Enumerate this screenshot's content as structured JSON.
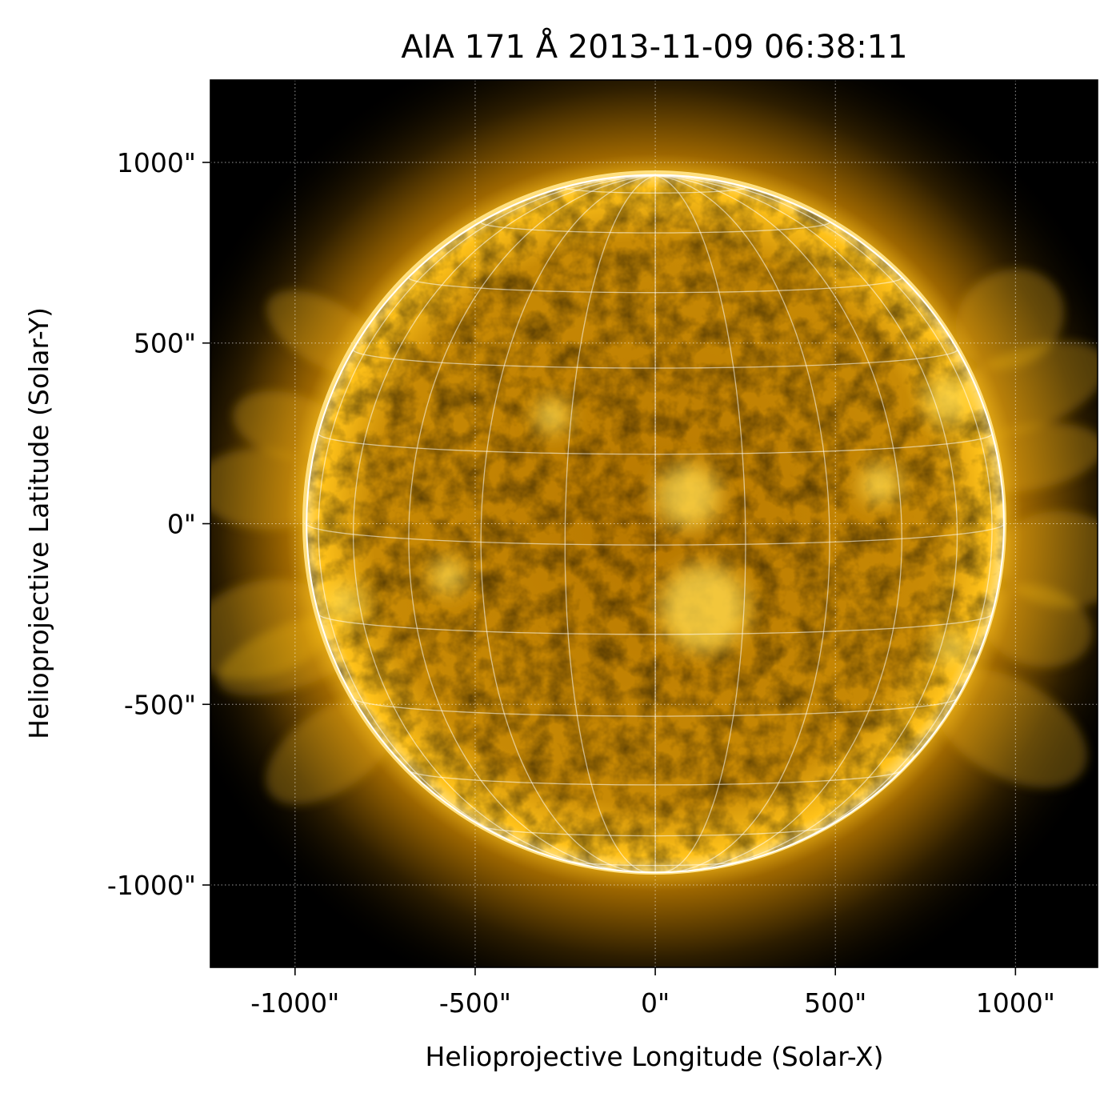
{
  "figure": {
    "title": "AIA 171 Å 2013-11-09 06:38:11",
    "xlabel": "Helioprojective Longitude (Solar-X)",
    "ylabel": "Helioprojective Latitude (Solar-Y)",
    "colormap": {
      "name": "sdoaia171",
      "dark": "#000000",
      "mid": "#b87800",
      "bright": "#ffc21a",
      "white": "#ffffff"
    },
    "axes": {
      "x_ticks": [
        {
          "value": -1000,
          "label": "-1000\""
        },
        {
          "value": -500,
          "label": "-500\""
        },
        {
          "value": 0,
          "label": "0\""
        },
        {
          "value": 500,
          "label": "500\""
        },
        {
          "value": 1000,
          "label": "1000\""
        }
      ],
      "y_ticks": [
        {
          "value": 1000,
          "label": "1000\""
        },
        {
          "value": 500,
          "label": "500\""
        },
        {
          "value": 0,
          "label": "0\""
        },
        {
          "value": -500,
          "label": "-500\""
        },
        {
          "value": -1000,
          "label": "-1000\""
        }
      ],
      "x_range": [
        -1235,
        1228
      ],
      "y_range": [
        -1228,
        1228
      ],
      "grid": "on (dotted)"
    },
    "solar_limb_radius_arcsec": 968,
    "heliographic_grid_spacing_deg": 15
  }
}
